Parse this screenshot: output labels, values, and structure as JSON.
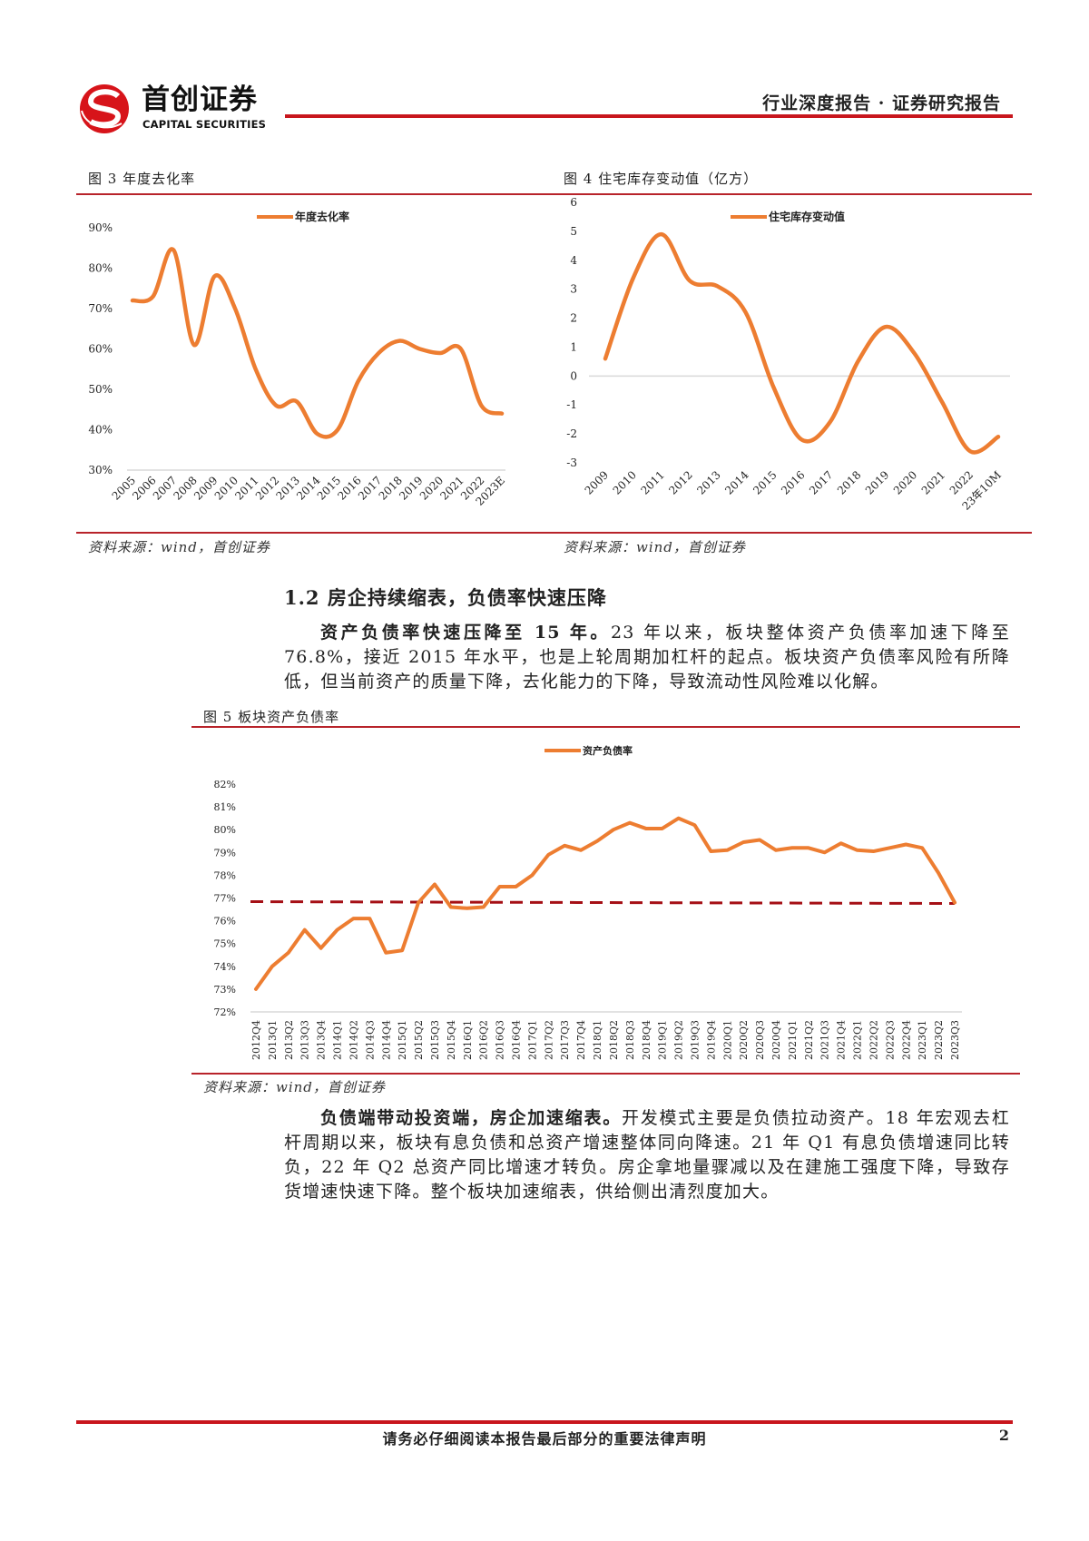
{
  "header": {
    "logo_cn": "首创证券",
    "logo_en": "CAPITAL SECURITIES",
    "report_type": "行业深度报告 · 证券研究报告"
  },
  "fig3": {
    "title": "图 3  年度去化率",
    "source": "资料来源：wind，首创证券"
  },
  "fig4": {
    "title": "图 4  住宅库存变动值（亿方）",
    "source": "资料来源：wind，首创证券"
  },
  "section": {
    "heading": "1.2  房企持续缩表，负债率快速压降"
  },
  "para1": {
    "lead": "资产负债率快速压降至 15 年。",
    "body": "23 年以来，板块整体资产负债率加速下降至 76.8%，接近 2015 年水平，也是上轮周期加杠杆的起点。板块资产负债率风险有所降低，但当前资产的质量下降，去化能力的下降，导致流动性风险难以化解。"
  },
  "fig5": {
    "title": "图 5  板块资产负债率",
    "source": "资料来源：wind，首创证券"
  },
  "para2": {
    "lead": "负债端带动投资端，房企加速缩表。",
    "body": "开发模式主要是负债拉动资产。18 年宏观去杠杆周期以来，板块有息负债和总资产增速整体同向降速。21 年 Q1 有息负债增速同比转负，22 年 Q2 总资产同比增速才转负。房企拿地量骤减以及在建施工强度下降，导致存货增速快速下降。整个板块加速缩表，供给侧出清烈度加大。"
  },
  "footer": {
    "disclaimer": "请务必仔细阅读本报告最后部分的重要法律声明",
    "page": "2"
  },
  "colors": {
    "brand_red": "#c8161d",
    "series_orange": "#ed7d31",
    "ref_dash": "#a50f15"
  },
  "chart_data": [
    {
      "type": "line",
      "title": "年度去化率",
      "legend": [
        "年度去化率"
      ],
      "legend_position": "top-center",
      "categories": [
        "2005",
        "2006",
        "2007",
        "2008",
        "2009",
        "2010",
        "2011",
        "2012",
        "2013",
        "2014",
        "2015",
        "2016",
        "2017",
        "2018",
        "2019",
        "2020",
        "2021",
        "2022",
        "2023E"
      ],
      "series": [
        {
          "name": "年度去化率",
          "values": [
            72,
            73,
            84.5,
            61,
            78,
            70,
            55,
            46,
            47,
            39,
            40,
            52,
            59,
            62,
            60,
            59,
            60,
            46,
            44
          ]
        }
      ],
      "yticks": [
        "30%",
        "40%",
        "50%",
        "60%",
        "70%",
        "80%",
        "90%"
      ],
      "ylim": [
        30,
        90
      ],
      "smooth": true
    },
    {
      "type": "line",
      "title": "住宅库存变动值（亿方）",
      "legend": [
        "住宅库存变动值"
      ],
      "legend_position": "top-center",
      "categories": [
        "2009",
        "2010",
        "2011",
        "2012",
        "2013",
        "2014",
        "2015",
        "2016",
        "2017",
        "2018",
        "2019",
        "2020",
        "2021",
        "2022",
        "23年10M"
      ],
      "series": [
        {
          "name": "住宅库存变动值",
          "values": [
            0.6,
            3.4,
            4.9,
            3.3,
            3.1,
            2.2,
            -0.4,
            -2.2,
            -1.6,
            0.5,
            1.7,
            0.8,
            -0.9,
            -2.6,
            -2.1
          ]
        }
      ],
      "yticks": [
        "-3",
        "-2",
        "-1",
        "0",
        "1",
        "2",
        "3",
        "4",
        "5",
        "6"
      ],
      "ylim": [
        -3,
        6
      ],
      "smooth": true
    },
    {
      "type": "line",
      "title": "板块资产负债率",
      "legend": [
        "资产负债率"
      ],
      "legend_position": "top-center",
      "categories": [
        "2012Q4",
        "2013Q1",
        "2013Q2",
        "2013Q3",
        "2013Q4",
        "2014Q1",
        "2014Q2",
        "2014Q3",
        "2014Q4",
        "2015Q1",
        "2015Q2",
        "2015Q3",
        "2015Q4",
        "2016Q1",
        "2016Q2",
        "2016Q3",
        "2016Q4",
        "2017Q1",
        "2017Q2",
        "2017Q3",
        "2017Q4",
        "2018Q1",
        "2018Q2",
        "2018Q3",
        "2018Q4",
        "2019Q1",
        "2019Q2",
        "2019Q3",
        "2019Q4",
        "2020Q1",
        "2020Q2",
        "2020Q3",
        "2020Q4",
        "2021Q1",
        "2021Q2",
        "2021Q3",
        "2021Q4",
        "2022Q1",
        "2022Q2",
        "2022Q3",
        "2022Q4",
        "2023Q1",
        "2023Q2",
        "2023Q3"
      ],
      "series": [
        {
          "name": "资产负债率",
          "values": [
            73.0,
            74.0,
            74.6,
            75.6,
            74.8,
            75.6,
            76.1,
            76.1,
            74.6,
            74.7,
            76.8,
            77.6,
            76.6,
            76.55,
            76.6,
            77.5,
            77.5,
            78.0,
            78.9,
            79.3,
            79.1,
            79.5,
            80.0,
            80.3,
            80.05,
            80.05,
            80.5,
            80.2,
            79.05,
            79.1,
            79.45,
            79.55,
            79.1,
            79.2,
            79.2,
            79.0,
            79.4,
            79.1,
            79.05,
            79.2,
            79.35,
            79.2,
            78.1,
            76.8
          ]
        }
      ],
      "reference_line": 76.8,
      "yticks": [
        "72%",
        "73%",
        "74%",
        "75%",
        "76%",
        "77%",
        "78%",
        "79%",
        "80%",
        "81%",
        "82%"
      ],
      "ylim": [
        72,
        82
      ],
      "smooth": false
    }
  ]
}
